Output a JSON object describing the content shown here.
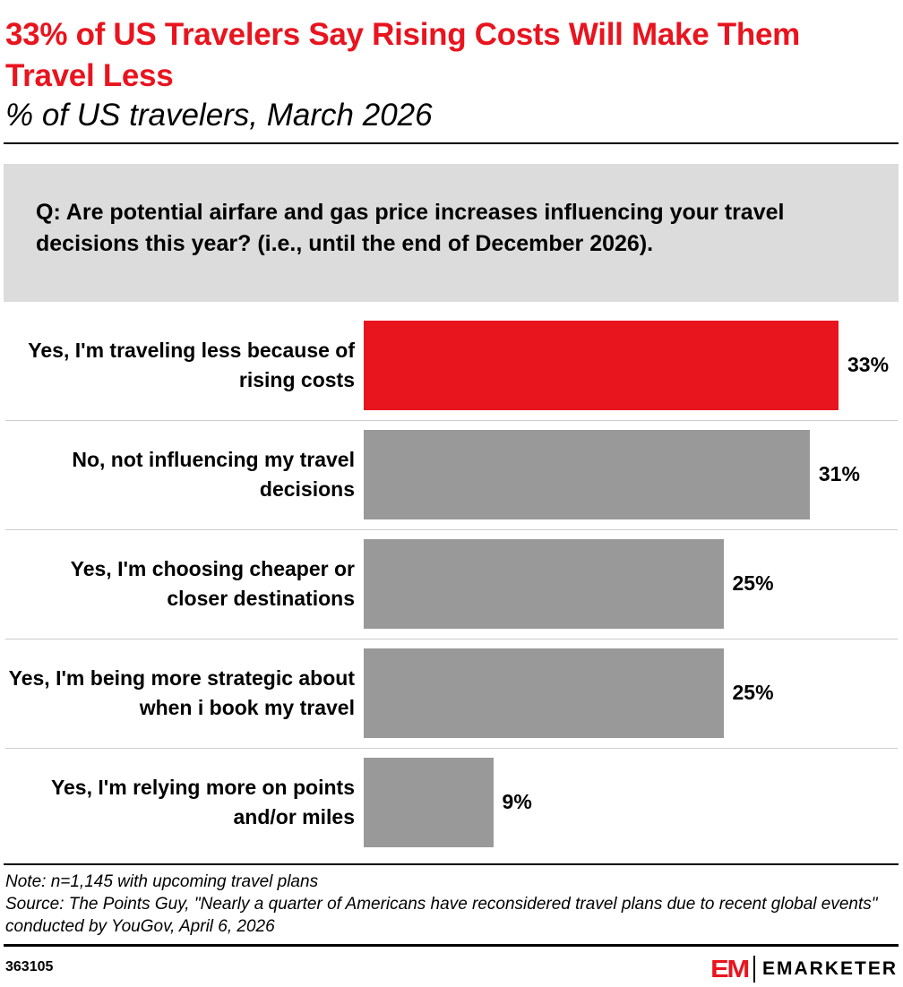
{
  "chart_data": {
    "type": "bar",
    "orientation": "horizontal",
    "title": "33% of US Travelers Say Rising Costs Will Make Them Travel Less",
    "subtitle": "% of US travelers, March 2026",
    "question": "Q: Are potential airfare and gas price increases influencing your travel decisions this year? (i.e., until the end of December 2026).",
    "categories": [
      "Yes, I'm traveling less because of rising costs",
      "No, not influencing my travel decisions",
      "Yes, I'm choosing cheaper or closer destinations",
      "Yes, I'm being more strategic about when i book my travel",
      "Yes, I'm relying more on points and/or miles"
    ],
    "values": [
      33,
      31,
      25,
      25,
      9
    ],
    "data_labels": [
      "33%",
      "31%",
      "25%",
      "25%",
      "9%"
    ],
    "colors": [
      "#e8141e",
      "#999999",
      "#999999",
      "#999999",
      "#999999"
    ],
    "xlim": [
      0,
      33
    ],
    "grid": false
  },
  "note": "Note: n=1,145 with upcoming travel plans",
  "source": "Source: The Points Guy, \"Nearly a quarter of Americans have reconsidered travel plans due to recent global events\" conducted by YouGov, April 6, 2026",
  "chart_id": "363105",
  "logo": {
    "mark": "EM",
    "text": "EMARKETER",
    "color": "#e8141e"
  }
}
